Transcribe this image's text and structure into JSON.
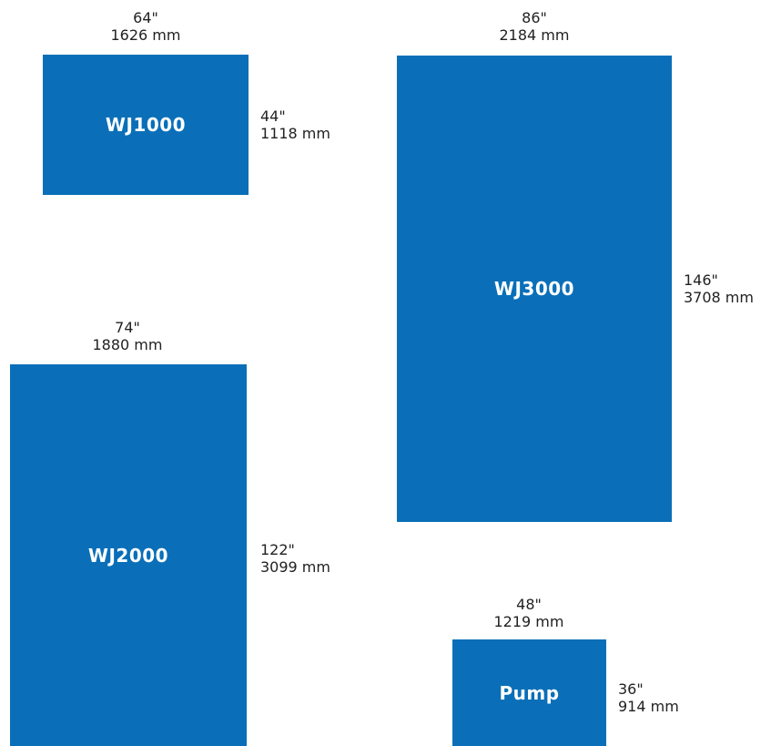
{
  "colors": {
    "box_fill": "#0a6fb8",
    "box_label": "#ffffff",
    "dimension_text": "#222222"
  },
  "units": [
    {
      "id": "wj1000",
      "label": "WJ1000",
      "width": {
        "inches": "64\"",
        "mm": "1626 mm"
      },
      "height": {
        "inches": "44\"",
        "mm": "1118 mm"
      }
    },
    {
      "id": "wj2000",
      "label": "WJ2000",
      "width": {
        "inches": "74\"",
        "mm": "1880 mm"
      },
      "height": {
        "inches": "122\"",
        "mm": "3099 mm"
      }
    },
    {
      "id": "wj3000",
      "label": "WJ3000",
      "width": {
        "inches": "86\"",
        "mm": "2184 mm"
      },
      "height": {
        "inches": "146\"",
        "mm": "3708 mm"
      }
    },
    {
      "id": "pump",
      "label": "Pump",
      "width": {
        "inches": "48\"",
        "mm": "1219 mm"
      },
      "height": {
        "inches": "36\"",
        "mm": "914 mm"
      }
    }
  ]
}
